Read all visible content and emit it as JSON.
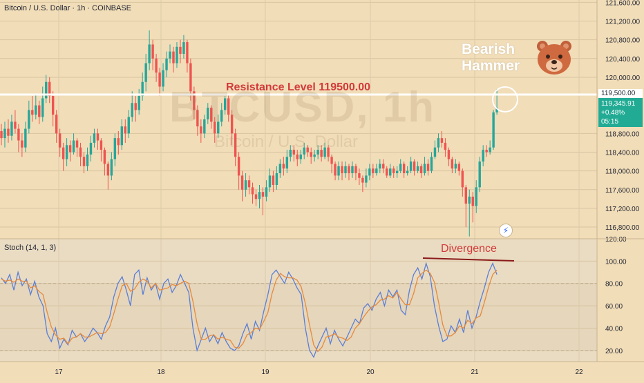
{
  "header": {
    "symbol_title": "Bitcoin / U.S. Dollar · 1h · COINBASE",
    "watermark_symbol": "BTCUSD, 1h",
    "watermark_name": "Bitcoin / U.S. Dollar"
  },
  "annotations": {
    "resistance_label": "Resistance Level 119500.00",
    "hammer_line1": "Bearish",
    "hammer_line2": "Hammer",
    "divergence_label": "Divergence",
    "bear_icon": "bear-face-icon",
    "bolt_icon": "lightning-icon"
  },
  "price_badge": {
    "price": "119,345.91",
    "change": "+0.48%",
    "countdown": "05:15",
    "resistance_price": "119,500.00",
    "color": "#22ab94"
  },
  "colors": {
    "up": "#26a69a",
    "down": "#ef5350",
    "stoch_k": "#5b7fd6",
    "stoch_d": "#e68a3c",
    "resistance": "#ffffff",
    "annotation_red": "#d23a3a"
  },
  "stoch_title": "Stoch (14, 1, 3)",
  "chart_data": [
    {
      "type": "candlestick",
      "title": "Bitcoin / U.S. Dollar · 1h · COINBASE",
      "x_ticks": [
        "17",
        "18",
        "19",
        "20",
        "21",
        "22"
      ],
      "y_ticks": [
        "121,600.00",
        "121,200.00",
        "120,800.00",
        "120,400.00",
        "120,000.00",
        "118,800.00",
        "118,400.00",
        "118,000.00",
        "117,600.00",
        "117,200.00",
        "116,800.00"
      ],
      "ylim": [
        116550,
        121650
      ],
      "resistance_level": 119500,
      "last_price": 119345.91,
      "candles": [
        [
          118850,
          118700,
          119000,
          118550
        ],
        [
          118700,
          118900,
          119050,
          118500
        ],
        [
          118900,
          118750,
          119100,
          118600
        ],
        [
          118750,
          119050,
          119200,
          118650
        ],
        [
          119050,
          118900,
          119300,
          118800
        ],
        [
          118900,
          118650,
          119000,
          118400
        ],
        [
          118650,
          118500,
          118800,
          118300
        ],
        [
          118500,
          118900,
          119050,
          118400
        ],
        [
          118900,
          119300,
          119500,
          118800
        ],
        [
          119300,
          119200,
          119600,
          119050
        ],
        [
          119200,
          119400,
          119650,
          119100
        ],
        [
          119400,
          119150,
          119500,
          119000
        ],
        [
          119150,
          119550,
          119800,
          119050
        ],
        [
          119550,
          119900,
          120050,
          119450
        ],
        [
          119900,
          119600,
          120000,
          119450
        ],
        [
          119600,
          119200,
          119700,
          118950
        ],
        [
          119200,
          118800,
          119300,
          118600
        ],
        [
          118800,
          118500,
          118900,
          118300
        ],
        [
          118500,
          118250,
          118600,
          118000
        ],
        [
          118250,
          118550,
          118700,
          118100
        ],
        [
          118550,
          118400,
          118650,
          118200
        ],
        [
          118400,
          118650,
          118800,
          118350
        ],
        [
          118650,
          118500,
          118700,
          118300
        ],
        [
          118500,
          118300,
          118600,
          118100
        ],
        [
          118300,
          118100,
          118400,
          117950
        ],
        [
          118100,
          118350,
          118500,
          118000
        ],
        [
          118350,
          118600,
          118750,
          118200
        ],
        [
          118600,
          118800,
          118900,
          118500
        ],
        [
          118800,
          118650,
          118900,
          118450
        ],
        [
          118650,
          118450,
          118700,
          118200
        ],
        [
          118450,
          118150,
          118500,
          117900
        ],
        [
          118150,
          117900,
          118200,
          117600
        ],
        [
          117900,
          118250,
          118400,
          117800
        ],
        [
          118250,
          118700,
          118800,
          118100
        ],
        [
          118700,
          118550,
          118850,
          118350
        ],
        [
          118550,
          118950,
          119100,
          118450
        ],
        [
          118950,
          118800,
          119100,
          118600
        ],
        [
          118800,
          119150,
          119300,
          118700
        ],
        [
          119150,
          119450,
          119700,
          119050
        ],
        [
          119450,
          119300,
          119600,
          119050
        ],
        [
          119300,
          119600,
          119750,
          119200
        ],
        [
          119600,
          119900,
          120100,
          119500
        ],
        [
          119900,
          120300,
          120500,
          119700
        ],
        [
          120300,
          120700,
          121000,
          120150
        ],
        [
          120700,
          120400,
          120800,
          120150
        ],
        [
          120400,
          120100,
          120500,
          119900
        ],
        [
          120100,
          119800,
          120200,
          119600
        ],
        [
          119800,
          120150,
          120300,
          119700
        ],
        [
          120150,
          120400,
          120550,
          120000
        ],
        [
          120400,
          120550,
          120700,
          120300
        ],
        [
          120550,
          120300,
          120650,
          120100
        ],
        [
          120300,
          120650,
          120750,
          120200
        ],
        [
          120650,
          120500,
          120800,
          120300
        ],
        [
          120500,
          120750,
          120900,
          120400
        ],
        [
          120750,
          120300,
          120800,
          120100
        ],
        [
          120300,
          119700,
          120400,
          119500
        ],
        [
          119700,
          119300,
          119800,
          119100
        ],
        [
          119300,
          118950,
          119400,
          118750
        ],
        [
          118950,
          118800,
          119100,
          118600
        ],
        [
          118800,
          119100,
          119200,
          118700
        ],
        [
          119100,
          119350,
          119450,
          119000
        ],
        [
          119350,
          119050,
          119400,
          118900
        ],
        [
          119050,
          118800,
          119150,
          118600
        ],
        [
          118800,
          119050,
          119200,
          118700
        ],
        [
          119050,
          119300,
          119450,
          118950
        ],
        [
          119300,
          119550,
          119600,
          119200
        ],
        [
          119550,
          119200,
          119650,
          119050
        ],
        [
          119200,
          118800,
          119300,
          118550
        ],
        [
          118800,
          118300,
          118900,
          118100
        ],
        [
          118300,
          117900,
          118400,
          117600
        ],
        [
          117900,
          117600,
          118000,
          117350
        ],
        [
          117600,
          117800,
          117950,
          117450
        ],
        [
          117800,
          117650,
          117900,
          117500
        ],
        [
          117650,
          117500,
          117750,
          117300
        ],
        [
          117500,
          117400,
          117600,
          117250
        ],
        [
          117400,
          117550,
          117700,
          117200
        ],
        [
          117550,
          117450,
          117650,
          117050
        ],
        [
          117450,
          117650,
          117800,
          117350
        ],
        [
          117650,
          117900,
          118050,
          117550
        ],
        [
          117900,
          117700,
          118000,
          117550
        ],
        [
          117700,
          117950,
          118100,
          117600
        ],
        [
          117950,
          118150,
          118250,
          117850
        ],
        [
          118150,
          118050,
          118300,
          117900
        ],
        [
          118050,
          118300,
          118450,
          117950
        ],
        [
          118300,
          118450,
          118550,
          118200
        ],
        [
          118450,
          118350,
          118550,
          118200
        ],
        [
          118350,
          118250,
          118450,
          118100
        ],
        [
          118250,
          118350,
          118450,
          118150
        ],
        [
          118350,
          118500,
          118600,
          118250
        ],
        [
          118500,
          118400,
          118550,
          118300
        ],
        [
          118400,
          118300,
          118500,
          118150
        ],
        [
          118300,
          118350,
          118450,
          118200
        ],
        [
          118350,
          118450,
          118550,
          118250
        ],
        [
          118450,
          118300,
          118550,
          118200
        ],
        [
          118300,
          118500,
          118600,
          118250
        ],
        [
          118500,
          118300,
          118550,
          118200
        ],
        [
          118300,
          118150,
          118350,
          117950
        ],
        [
          118150,
          117900,
          118200,
          117800
        ],
        [
          117900,
          118100,
          118200,
          117800
        ],
        [
          118100,
          117950,
          118200,
          117800
        ],
        [
          117950,
          118100,
          118200,
          117850
        ],
        [
          118100,
          117950,
          118150,
          117800
        ],
        [
          117950,
          118100,
          118200,
          117850
        ],
        [
          118100,
          117950,
          118150,
          117800
        ],
        [
          117950,
          117850,
          118050,
          117700
        ],
        [
          117850,
          117750,
          117900,
          117550
        ],
        [
          117750,
          117900,
          118050,
          117650
        ],
        [
          117900,
          118050,
          118150,
          117800
        ],
        [
          118050,
          117950,
          118150,
          117850
        ],
        [
          117950,
          118050,
          118150,
          117900
        ],
        [
          118050,
          118150,
          118250,
          117950
        ],
        [
          118150,
          118050,
          118250,
          117950
        ],
        [
          118050,
          117900,
          118100,
          117850
        ],
        [
          117900,
          118050,
          118150,
          117850
        ],
        [
          118050,
          117950,
          118100,
          117850
        ],
        [
          117950,
          118000,
          118100,
          117850
        ],
        [
          118000,
          118150,
          118250,
          117950
        ],
        [
          118150,
          117950,
          118200,
          117850
        ],
        [
          117950,
          118000,
          118100,
          117900
        ],
        [
          118000,
          118200,
          118300,
          117950
        ],
        [
          118200,
          118000,
          118250,
          117900
        ],
        [
          118000,
          118100,
          118200,
          117950
        ],
        [
          118100,
          117950,
          118150,
          117850
        ],
        [
          117950,
          118150,
          118300,
          117900
        ],
        [
          118150,
          118000,
          118250,
          117900
        ],
        [
          118000,
          118300,
          118400,
          117950
        ],
        [
          118300,
          118500,
          118650,
          118250
        ],
        [
          118500,
          118700,
          118800,
          118400
        ],
        [
          118700,
          118600,
          118850,
          118500
        ],
        [
          118600,
          118450,
          118700,
          118300
        ],
        [
          118450,
          118250,
          118500,
          118100
        ],
        [
          118250,
          118050,
          118300,
          117950
        ],
        [
          118050,
          118150,
          118250,
          117950
        ],
        [
          118150,
          118000,
          118200,
          117900
        ],
        [
          118000,
          117650,
          118050,
          117450
        ],
        [
          117650,
          117300,
          117700,
          116800
        ],
        [
          117300,
          117450,
          117600,
          116600
        ],
        [
          117450,
          117250,
          117550,
          116900
        ],
        [
          117250,
          117650,
          117800,
          117100
        ],
        [
          117650,
          118200,
          118300,
          117550
        ],
        [
          118200,
          118450,
          118550,
          118100
        ],
        [
          118450,
          118400,
          118550,
          118300
        ],
        [
          118400,
          118500,
          118650,
          118350
        ],
        [
          118500,
          119250,
          119300,
          118450
        ],
        [
          119250,
          119350,
          119750,
          119200
        ]
      ]
    },
    {
      "type": "line",
      "title": "Stoch (14, 1, 3)",
      "y_ticks": [
        "120.00",
        "100.00",
        "80.00",
        "60.00",
        "40.00",
        "20.00"
      ],
      "ylim": [
        10,
        120
      ],
      "series": [
        {
          "name": "%K",
          "values": [
            85,
            80,
            88,
            74,
            90,
            78,
            84,
            70,
            82,
            68,
            60,
            35,
            28,
            40,
            22,
            30,
            25,
            38,
            32,
            35,
            28,
            33,
            40,
            36,
            30,
            42,
            50,
            68,
            80,
            86,
            74,
            60,
            88,
            92,
            70,
            85,
            74,
            80,
            66,
            80,
            84,
            72,
            78,
            88,
            80,
            72,
            40,
            20,
            30,
            40,
            28,
            34,
            26,
            36,
            28,
            22,
            20,
            24,
            35,
            44,
            30,
            46,
            38,
            55,
            70,
            88,
            92,
            86,
            80,
            90,
            84,
            76,
            70,
            40,
            20,
            14,
            24,
            32,
            40,
            26,
            38,
            30,
            24,
            32,
            40,
            48,
            44,
            58,
            62,
            56,
            66,
            72,
            60,
            74,
            68,
            74,
            56,
            52,
            74,
            88,
            94,
            84,
            98,
            86,
            60,
            42,
            28,
            30,
            42,
            36,
            48,
            36,
            56,
            40,
            50,
            64,
            76,
            90,
            98,
            88
          ]
        },
        {
          "name": "%D",
          "values": [
            84,
            82,
            83,
            81,
            84,
            82,
            82,
            76,
            78,
            73,
            70,
            54,
            41,
            34,
            30,
            31,
            26,
            31,
            32,
            35,
            32,
            32,
            34,
            36,
            35,
            36,
            41,
            53,
            66,
            78,
            80,
            73,
            75,
            81,
            84,
            82,
            76,
            80,
            74,
            75,
            76,
            79,
            78,
            80,
            82,
            80,
            64,
            44,
            30,
            30,
            33,
            34,
            30,
            32,
            30,
            29,
            23,
            22,
            26,
            34,
            36,
            40,
            39,
            46,
            54,
            71,
            83,
            89,
            86,
            85,
            85,
            83,
            77,
            62,
            43,
            25,
            19,
            23,
            32,
            33,
            35,
            32,
            31,
            29,
            32,
            40,
            44,
            50,
            55,
            59,
            61,
            65,
            66,
            69,
            67,
            72,
            66,
            61,
            61,
            71,
            85,
            89,
            92,
            89,
            81,
            63,
            43,
            33,
            33,
            36,
            42,
            40,
            47,
            44,
            49,
            51,
            63,
            77,
            88,
            92
          ]
        }
      ]
    }
  ]
}
